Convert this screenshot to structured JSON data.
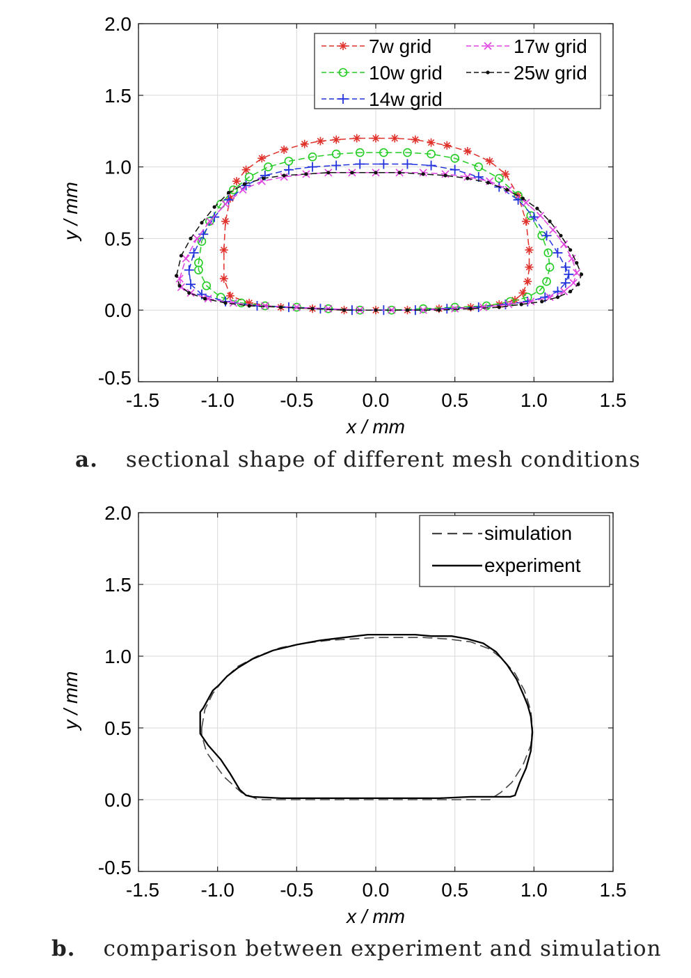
{
  "figure_a": {
    "caption_label": "a.",
    "caption_text": "sectional shape of different mesh conditions"
  },
  "figure_b": {
    "caption_label": "b.",
    "caption_text": "comparison between experiment and simulation"
  },
  "chart_data": [
    {
      "type": "line",
      "xlabel": "x / mm",
      "ylabel": "y / mm",
      "xlim": [
        -1.5,
        1.5
      ],
      "ylim": [
        -0.5,
        2.0
      ],
      "xticks": [
        -1.5,
        -1.0,
        -0.5,
        0.0,
        0.5,
        1.0,
        1.5
      ],
      "xtick_labels": [
        "-1.5",
        "-1.0",
        "-0.5",
        "0.0",
        "0.5",
        "1.0",
        "1.5"
      ],
      "yticks": [
        -0.5,
        0.0,
        0.5,
        1.0,
        1.5,
        2.0
      ],
      "ytick_labels": [
        "-0.5",
        "0.0",
        "0.5",
        "1.0",
        "1.5",
        "2.0"
      ],
      "grid": true,
      "legend_position": "top-right",
      "series": [
        {
          "name": "7w grid",
          "color": "#e0302a",
          "marker": "asterisk",
          "x": [
            -0.96,
            -0.95,
            -0.92,
            -0.88,
            -0.82,
            -0.72,
            -0.58,
            -0.45,
            -0.35,
            -0.25,
            -0.12,
            0.0,
            0.12,
            0.25,
            0.35,
            0.45,
            0.58,
            0.72,
            0.82,
            0.9,
            0.95,
            0.97,
            0.97,
            0.96,
            0.93,
            0.88,
            0.78,
            0.6,
            0.4,
            0.2,
            0.0,
            -0.2,
            -0.4,
            -0.6,
            -0.8,
            -0.92,
            -0.96
          ],
          "y": [
            0.42,
            0.62,
            0.78,
            0.9,
            0.98,
            1.06,
            1.12,
            1.16,
            1.18,
            1.19,
            1.2,
            1.2,
            1.2,
            1.19,
            1.17,
            1.15,
            1.11,
            1.04,
            0.95,
            0.8,
            0.62,
            0.42,
            0.3,
            0.2,
            0.12,
            0.07,
            0.04,
            0.02,
            0.01,
            0.0,
            0.0,
            0.0,
            0.01,
            0.02,
            0.05,
            0.1,
            0.22
          ]
        },
        {
          "name": "10w grid",
          "color": "#22cc22",
          "marker": "circle",
          "x": [
            -1.12,
            -1.1,
            -1.05,
            -0.98,
            -0.9,
            -0.8,
            -0.68,
            -0.55,
            -0.4,
            -0.25,
            -0.1,
            0.05,
            0.2,
            0.35,
            0.5,
            0.65,
            0.78,
            0.9,
            0.98,
            1.05,
            1.09,
            1.1,
            1.08,
            1.04,
            0.96,
            0.85,
            0.7,
            0.5,
            0.3,
            0.1,
            -0.1,
            -0.3,
            -0.5,
            -0.7,
            -0.85,
            -0.98,
            -1.07,
            -1.12
          ],
          "y": [
            0.33,
            0.48,
            0.62,
            0.74,
            0.84,
            0.93,
            1.0,
            1.04,
            1.07,
            1.09,
            1.1,
            1.1,
            1.1,
            1.09,
            1.06,
            1.0,
            0.92,
            0.8,
            0.66,
            0.52,
            0.4,
            0.3,
            0.2,
            0.14,
            0.09,
            0.06,
            0.03,
            0.02,
            0.01,
            0.0,
            0.0,
            0.01,
            0.02,
            0.03,
            0.05,
            0.09,
            0.17,
            0.28
          ]
        },
        {
          "name": "14w grid",
          "color": "#2233dd",
          "marker": "plus",
          "x": [
            -1.18,
            -1.15,
            -1.09,
            -1.02,
            -0.93,
            -0.82,
            -0.7,
            -0.55,
            -0.4,
            -0.25,
            -0.1,
            0.05,
            0.2,
            0.35,
            0.5,
            0.65,
            0.78,
            0.9,
            1.0,
            1.08,
            1.15,
            1.2,
            1.22,
            1.2,
            1.15,
            1.07,
            0.96,
            0.82,
            0.65,
            0.45,
            0.25,
            0.05,
            -0.15,
            -0.35,
            -0.55,
            -0.75,
            -0.95,
            -1.1,
            -1.17
          ],
          "y": [
            0.28,
            0.4,
            0.53,
            0.65,
            0.77,
            0.87,
            0.94,
            0.98,
            1.0,
            1.01,
            1.02,
            1.02,
            1.02,
            1.01,
            0.98,
            0.93,
            0.86,
            0.77,
            0.65,
            0.52,
            0.4,
            0.3,
            0.25,
            0.19,
            0.13,
            0.09,
            0.06,
            0.04,
            0.02,
            0.01,
            0.0,
            0.0,
            0.0,
            0.01,
            0.02,
            0.03,
            0.06,
            0.11,
            0.18
          ]
        },
        {
          "name": "17w grid",
          "color": "#e040e0",
          "marker": "x",
          "x": [
            -1.24,
            -1.2,
            -1.13,
            -1.05,
            -0.95,
            -0.84,
            -0.72,
            -0.58,
            -0.44,
            -0.3,
            -0.15,
            0.0,
            0.15,
            0.3,
            0.44,
            0.58,
            0.72,
            0.84,
            0.95,
            1.04,
            1.12,
            1.19,
            1.24,
            1.27,
            1.25,
            1.19,
            1.1,
            0.98,
            0.84,
            0.68,
            0.5,
            0.3,
            0.1,
            -0.1,
            -0.3,
            -0.5,
            -0.7,
            -0.9,
            -1.06,
            -1.17,
            -1.23
          ],
          "y": [
            0.22,
            0.36,
            0.5,
            0.62,
            0.74,
            0.84,
            0.9,
            0.93,
            0.95,
            0.96,
            0.96,
            0.96,
            0.96,
            0.96,
            0.95,
            0.93,
            0.9,
            0.84,
            0.75,
            0.66,
            0.56,
            0.46,
            0.36,
            0.26,
            0.19,
            0.13,
            0.09,
            0.06,
            0.04,
            0.02,
            0.01,
            0.0,
            0.0,
            0.0,
            0.01,
            0.02,
            0.03,
            0.05,
            0.08,
            0.12,
            0.16
          ]
        },
        {
          "name": "25w grid",
          "color": "#111111",
          "marker": "dot",
          "x": [
            -1.26,
            -1.23,
            -1.17,
            -1.1,
            -1.02,
            -0.93,
            -0.83,
            -0.71,
            -0.58,
            -0.44,
            -0.3,
            -0.15,
            0.0,
            0.15,
            0.3,
            0.44,
            0.58,
            0.71,
            0.83,
            0.93,
            1.02,
            1.1,
            1.17,
            1.23,
            1.27,
            1.3,
            1.28,
            1.23,
            1.15,
            1.05,
            0.92,
            0.78,
            0.6,
            0.4,
            0.2,
            0.0,
            -0.2,
            -0.4,
            -0.6,
            -0.8,
            -0.95,
            -1.08,
            -1.18,
            -1.24
          ],
          "y": [
            0.24,
            0.38,
            0.5,
            0.61,
            0.72,
            0.82,
            0.88,
            0.92,
            0.94,
            0.95,
            0.96,
            0.96,
            0.96,
            0.96,
            0.95,
            0.94,
            0.92,
            0.89,
            0.84,
            0.78,
            0.71,
            0.62,
            0.52,
            0.42,
            0.33,
            0.25,
            0.18,
            0.13,
            0.09,
            0.06,
            0.04,
            0.02,
            0.01,
            0.0,
            0.0,
            0.0,
            0.0,
            0.01,
            0.02,
            0.03,
            0.05,
            0.08,
            0.12,
            0.17
          ]
        }
      ]
    },
    {
      "type": "line",
      "xlabel": "x / mm",
      "ylabel": "y / mm",
      "xlim": [
        -1.5,
        1.5
      ],
      "ylim": [
        -0.5,
        2.0
      ],
      "xticks": [
        -1.5,
        -1.0,
        -0.5,
        0.0,
        0.5,
        1.0,
        1.5
      ],
      "xtick_labels": [
        "-1.5",
        "-1.0",
        "-0.5",
        "0.0",
        "0.5",
        "1.0",
        "1.5"
      ],
      "yticks": [
        -0.5,
        0.0,
        0.5,
        1.0,
        1.5,
        2.0
      ],
      "ytick_labels": [
        "-0.5",
        "0.0",
        "0.5",
        "1.0",
        "1.5",
        "2.0"
      ],
      "grid": true,
      "legend_position": "top-right",
      "series": [
        {
          "name": "simulation",
          "color": "#444444",
          "style": "dashed",
          "x": [
            -1.1,
            -1.08,
            -1.03,
            -0.96,
            -0.87,
            -0.75,
            -0.6,
            -0.45,
            -0.3,
            -0.15,
            0.0,
            0.15,
            0.3,
            0.45,
            0.6,
            0.72,
            0.8,
            0.88,
            0.94,
            0.98,
            0.99,
            0.98,
            0.93,
            0.86,
            0.79,
            0.72,
            0.5,
            0.2,
            -0.1,
            -0.4,
            -0.74,
            -0.85,
            -0.96,
            -1.07,
            -1.1
          ],
          "y": [
            0.5,
            0.63,
            0.74,
            0.84,
            0.93,
            1.0,
            1.06,
            1.09,
            1.11,
            1.12,
            1.13,
            1.13,
            1.13,
            1.12,
            1.1,
            1.05,
            0.98,
            0.88,
            0.76,
            0.62,
            0.5,
            0.38,
            0.24,
            0.12,
            0.05,
            0.0,
            0.0,
            0.0,
            0.0,
            0.0,
            0.0,
            0.05,
            0.16,
            0.33,
            0.45
          ]
        },
        {
          "name": "experiment",
          "color": "#000000",
          "style": "solid",
          "x": [
            -1.11,
            -1.11,
            -1.09,
            -1.06,
            -1.03,
            -0.99,
            -0.94,
            -0.87,
            -0.78,
            -0.65,
            -0.5,
            -0.35,
            -0.2,
            -0.05,
            0.1,
            0.25,
            0.35,
            0.48,
            0.58,
            0.68,
            0.76,
            0.83,
            0.89,
            0.93,
            0.96,
            0.98,
            0.99,
            0.98,
            0.95,
            0.91,
            0.89,
            0.88,
            0.85,
            0.76,
            0.6,
            0.4,
            0.2,
            0.0,
            -0.2,
            -0.4,
            -0.6,
            -0.78,
            -0.82,
            -0.86,
            -0.92,
            -0.98,
            -1.06,
            -1.11
          ],
          "y": [
            0.48,
            0.61,
            0.64,
            0.7,
            0.76,
            0.8,
            0.86,
            0.92,
            0.98,
            1.04,
            1.08,
            1.11,
            1.13,
            1.15,
            1.15,
            1.15,
            1.14,
            1.14,
            1.12,
            1.09,
            1.03,
            0.94,
            0.84,
            0.74,
            0.66,
            0.58,
            0.47,
            0.34,
            0.22,
            0.12,
            0.06,
            0.03,
            0.02,
            0.02,
            0.02,
            0.01,
            0.01,
            0.01,
            0.01,
            0.01,
            0.01,
            0.02,
            0.03,
            0.07,
            0.18,
            0.28,
            0.38,
            0.46
          ]
        }
      ]
    }
  ]
}
